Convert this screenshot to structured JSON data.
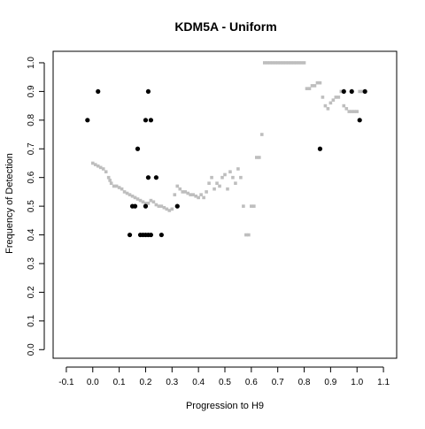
{
  "chart_data": {
    "type": "scatter",
    "title": "KDM5A - Uniform",
    "xlabel": "Progression to H9",
    "ylabel": "Frequency of Detection",
    "xlim": [
      -0.15,
      1.15
    ],
    "ylim": [
      -0.03,
      1.04
    ],
    "x_ticks": [
      -0.1,
      0.0,
      0.1,
      0.2,
      0.3,
      0.4,
      0.5,
      0.6,
      0.7,
      0.8,
      0.9,
      1.0,
      1.1
    ],
    "x_tick_labels": [
      "-0.1",
      "0.0",
      "0.1",
      "0.2",
      "0.3",
      "0.4",
      "0.5",
      "0.6",
      "0.7",
      "0.8",
      "0.9",
      "1.0",
      "1.1"
    ],
    "y_ticks": [
      0.0,
      0.1,
      0.2,
      0.3,
      0.4,
      0.5,
      0.6,
      0.7,
      0.8,
      0.9,
      1.0
    ],
    "y_tick_labels": [
      "0.0",
      "0.1",
      "0.2",
      "0.3",
      "0.4",
      "0.5",
      "0.6",
      "0.7",
      "0.8",
      "0.9",
      "1.0"
    ],
    "grid": false,
    "colors": {
      "black_series": "#000000",
      "grey_series": "#bebebe",
      "axis": "#000000"
    },
    "series": [
      {
        "color": "#000000",
        "marker": "filled-circle",
        "points": [
          [
            -0.02,
            0.8
          ],
          [
            0.02,
            0.9
          ],
          [
            0.14,
            0.4
          ],
          [
            0.15,
            0.5
          ],
          [
            0.16,
            0.5
          ],
          [
            0.17,
            0.7
          ],
          [
            0.18,
            0.4
          ],
          [
            0.19,
            0.4
          ],
          [
            0.2,
            0.4
          ],
          [
            0.21,
            0.4
          ],
          [
            0.22,
            0.4
          ],
          [
            0.2,
            0.8
          ],
          [
            0.21,
            0.9
          ],
          [
            0.22,
            0.8
          ],
          [
            0.21,
            0.6
          ],
          [
            0.24,
            0.6
          ],
          [
            0.2,
            0.5
          ],
          [
            0.26,
            0.4
          ],
          [
            0.32,
            0.5
          ],
          [
            0.86,
            0.7
          ],
          [
            0.95,
            0.9
          ],
          [
            0.98,
            0.9
          ],
          [
            1.01,
            0.8
          ],
          [
            1.03,
            0.9
          ]
        ]
      },
      {
        "color": "#bebebe",
        "marker": "small-square",
        "points": [
          [
            0.0,
            0.65
          ],
          [
            0.01,
            0.645
          ],
          [
            0.02,
            0.64
          ],
          [
            0.03,
            0.635
          ],
          [
            0.04,
            0.63
          ],
          [
            0.05,
            0.62
          ],
          [
            0.06,
            0.6
          ],
          [
            0.065,
            0.59
          ],
          [
            0.07,
            0.58
          ],
          [
            0.08,
            0.57
          ],
          [
            0.09,
            0.57
          ],
          [
            0.1,
            0.565
          ],
          [
            0.11,
            0.56
          ],
          [
            0.12,
            0.55
          ],
          [
            0.13,
            0.545
          ],
          [
            0.14,
            0.54
          ],
          [
            0.15,
            0.535
          ],
          [
            0.16,
            0.53
          ],
          [
            0.17,
            0.525
          ],
          [
            0.18,
            0.52
          ],
          [
            0.19,
            0.515
          ],
          [
            0.2,
            0.51
          ],
          [
            0.21,
            0.51
          ],
          [
            0.22,
            0.52
          ],
          [
            0.23,
            0.515
          ],
          [
            0.24,
            0.505
          ],
          [
            0.25,
            0.5
          ],
          [
            0.26,
            0.5
          ],
          [
            0.27,
            0.495
          ],
          [
            0.28,
            0.49
          ],
          [
            0.29,
            0.485
          ],
          [
            0.3,
            0.49
          ],
          [
            0.31,
            0.54
          ],
          [
            0.32,
            0.57
          ],
          [
            0.33,
            0.56
          ],
          [
            0.34,
            0.55
          ],
          [
            0.35,
            0.55
          ],
          [
            0.36,
            0.545
          ],
          [
            0.37,
            0.54
          ],
          [
            0.38,
            0.54
          ],
          [
            0.39,
            0.535
          ],
          [
            0.4,
            0.53
          ],
          [
            0.41,
            0.54
          ],
          [
            0.42,
            0.53
          ],
          [
            0.43,
            0.55
          ],
          [
            0.44,
            0.58
          ],
          [
            0.45,
            0.6
          ],
          [
            0.46,
            0.56
          ],
          [
            0.47,
            0.58
          ],
          [
            0.48,
            0.57
          ],
          [
            0.49,
            0.6
          ],
          [
            0.5,
            0.61
          ],
          [
            0.51,
            0.56
          ],
          [
            0.52,
            0.62
          ],
          [
            0.53,
            0.6
          ],
          [
            0.54,
            0.58
          ],
          [
            0.55,
            0.63
          ],
          [
            0.56,
            0.6
          ],
          [
            0.57,
            0.5
          ],
          [
            0.58,
            0.4
          ],
          [
            0.59,
            0.4
          ],
          [
            0.6,
            0.5
          ],
          [
            0.61,
            0.5
          ],
          [
            0.62,
            0.67
          ],
          [
            0.63,
            0.67
          ],
          [
            0.64,
            0.75
          ],
          [
            0.65,
            1.0
          ],
          [
            0.66,
            1.0
          ],
          [
            0.67,
            1.0
          ],
          [
            0.68,
            1.0
          ],
          [
            0.69,
            1.0
          ],
          [
            0.7,
            1.0
          ],
          [
            0.71,
            1.0
          ],
          [
            0.72,
            1.0
          ],
          [
            0.73,
            1.0
          ],
          [
            0.74,
            1.0
          ],
          [
            0.75,
            1.0
          ],
          [
            0.76,
            1.0
          ],
          [
            0.77,
            1.0
          ],
          [
            0.78,
            1.0
          ],
          [
            0.79,
            1.0
          ],
          [
            0.8,
            1.0
          ],
          [
            0.81,
            0.91
          ],
          [
            0.82,
            0.91
          ],
          [
            0.83,
            0.92
          ],
          [
            0.84,
            0.92
          ],
          [
            0.85,
            0.93
          ],
          [
            0.86,
            0.93
          ],
          [
            0.87,
            0.88
          ],
          [
            0.88,
            0.85
          ],
          [
            0.89,
            0.84
          ],
          [
            0.9,
            0.86
          ],
          [
            0.91,
            0.87
          ],
          [
            0.92,
            0.88
          ],
          [
            0.93,
            0.88
          ],
          [
            0.94,
            0.9
          ],
          [
            0.95,
            0.85
          ],
          [
            0.96,
            0.84
          ],
          [
            0.97,
            0.83
          ],
          [
            0.98,
            0.83
          ],
          [
            0.99,
            0.83
          ],
          [
            1.0,
            0.83
          ],
          [
            1.01,
            0.9
          ],
          [
            1.02,
            0.9
          ]
        ]
      }
    ]
  }
}
